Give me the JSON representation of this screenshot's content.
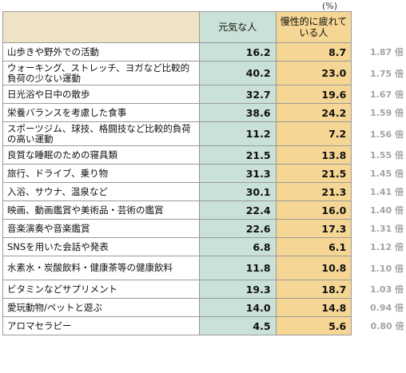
{
  "unit": "(%)",
  "chart_data": {
    "type": "table",
    "columns": [
      "",
      "元気な人",
      "慢性的に疲れている人",
      ""
    ],
    "series": [
      {
        "name": "元気な人",
        "values": [
          16.2,
          40.2,
          32.7,
          38.6,
          11.2,
          21.5,
          31.3,
          30.1,
          22.4,
          22.6,
          6.8,
          11.8,
          19.3,
          14.0,
          4.5
        ]
      },
      {
        "name": "慢性的に疲れている人",
        "values": [
          8.7,
          23.0,
          19.6,
          24.2,
          7.2,
          13.8,
          21.5,
          21.3,
          16.0,
          17.3,
          6.1,
          10.8,
          18.7,
          14.8,
          5.6
        ]
      }
    ],
    "rows": [
      {
        "label": "山歩きや野外での活動",
        "genki": "16.2",
        "tsukare": "8.7",
        "ratio": "1.87 倍"
      },
      {
        "label": "ウォーキング、ストレッチ、ヨガなど比較的負荷の少ない運動",
        "genki": "40.2",
        "tsukare": "23.0",
        "ratio": "1.75 倍"
      },
      {
        "label": "日光浴や日中の散歩",
        "genki": "32.7",
        "tsukare": "19.6",
        "ratio": "1.67 倍"
      },
      {
        "label": "栄養バランスを考慮した食事",
        "genki": "38.6",
        "tsukare": "24.2",
        "ratio": "1.59 倍"
      },
      {
        "label": "スポーツジム、球技、格闘技など比較的負荷の高い運動",
        "genki": "11.2",
        "tsukare": "7.2",
        "ratio": "1.56 倍"
      },
      {
        "label": "良質な睡眠のための寝具類",
        "genki": "21.5",
        "tsukare": "13.8",
        "ratio": "1.55 倍"
      },
      {
        "label": "旅行、ドライブ、乗り物",
        "genki": "31.3",
        "tsukare": "21.5",
        "ratio": "1.45 倍"
      },
      {
        "label": "入浴、サウナ、温泉など",
        "genki": "30.1",
        "tsukare": "21.3",
        "ratio": "1.41 倍"
      },
      {
        "label": "映画、動画鑑賞や美術品・芸術の鑑賞",
        "genki": "22.4",
        "tsukare": "16.0",
        "ratio": "1.40 倍"
      },
      {
        "label": "音楽演奏や音楽鑑賞",
        "genki": "22.6",
        "tsukare": "17.3",
        "ratio": "1.31 倍"
      },
      {
        "label": "SNSを用いた会話や発表",
        "genki": "6.8",
        "tsukare": "6.1",
        "ratio": "1.12 倍"
      },
      {
        "label": "水素水・炭酸飲料・健康茶等の健康飲料",
        "genki": "11.8",
        "tsukare": "10.8",
        "ratio": "1.10 倍"
      },
      {
        "label": "ビタミンなどサプリメント",
        "genki": "19.3",
        "tsukare": "18.7",
        "ratio": "1.03 倍"
      },
      {
        "label": "愛玩動物/ペットと遊ぶ",
        "genki": "14.0",
        "tsukare": "14.8",
        "ratio": "0.94 倍"
      },
      {
        "label": "アロマセラピー",
        "genki": "4.5",
        "tsukare": "5.6",
        "ratio": "0.80 倍"
      }
    ]
  },
  "colors": {
    "genki_fill": "#c9e1d6",
    "tsukare_fill": "#f5d694",
    "header_fill": "#efe3c6",
    "ratio_text": "#a3a3a3"
  }
}
